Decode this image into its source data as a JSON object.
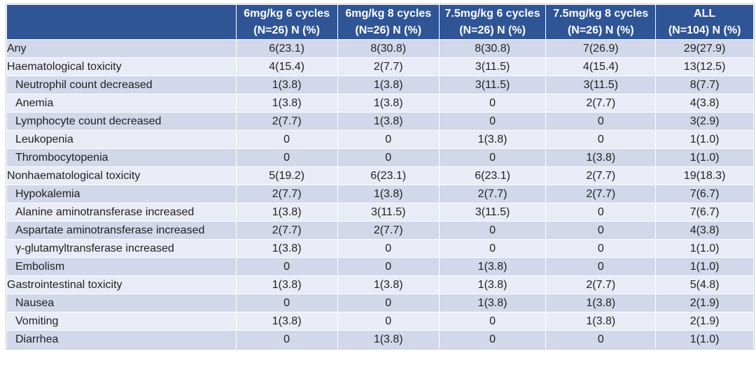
{
  "colors": {
    "header_bg": "#2F5597",
    "header_text": "#FFFFFF",
    "band_dark": "#D2D8EA",
    "band_light": "#E9ECF6",
    "body_text": "#1F1F1F",
    "grid_line": "#FFFFFF",
    "outer_border": "#C4CCDF"
  },
  "table": {
    "corner_label": "",
    "columns": [
      {
        "line1": "6mg/kg 6 cycles",
        "line2": "(N=26) N (%)"
      },
      {
        "line1": "6mg/kg 8 cycles",
        "line2": "(N=26) N (%)"
      },
      {
        "line1": "7.5mg/kg 6 cycles",
        "line2": "(N=26) N (%)"
      },
      {
        "line1": "7.5mg/kg 8 cycles",
        "line2": "(N=26) N (%)"
      },
      {
        "line1": "ALL",
        "line2": "(N=104) N (%)"
      }
    ],
    "rows": [
      {
        "label": "Any",
        "indent": false,
        "values": [
          "6(23.1)",
          "8(30.8)",
          "8(30.8)",
          "7(26.9)",
          "29(27.9)"
        ]
      },
      {
        "label": "Haematological toxicity",
        "indent": false,
        "values": [
          "4(15.4)",
          "2(7.7)",
          "3(11.5)",
          "4(15.4)",
          "13(12.5)"
        ]
      },
      {
        "label": "Neutrophil count decreased",
        "indent": true,
        "values": [
          "1(3.8)",
          "1(3.8)",
          "3(11.5)",
          "3(11.5)",
          "8(7.7)"
        ]
      },
      {
        "label": "Anemia",
        "indent": true,
        "values": [
          "1(3.8)",
          "1(3.8)",
          "0",
          "2(7.7)",
          "4(3.8)"
        ]
      },
      {
        "label": "Lymphocyte count decreased",
        "indent": true,
        "values": [
          "2(7.7)",
          "1(3.8)",
          "0",
          "0",
          "3(2.9)"
        ]
      },
      {
        "label": "Leukopenia",
        "indent": true,
        "values": [
          "0",
          "0",
          "1(3.8)",
          "0",
          "1(1.0)"
        ]
      },
      {
        "label": "Thrombocytopenia",
        "indent": true,
        "values": [
          "0",
          "0",
          "0",
          "1(3.8)",
          "1(1.0)"
        ]
      },
      {
        "label": "Nonhaematological toxicity",
        "indent": false,
        "values": [
          "5(19.2)",
          "6(23.1)",
          "6(23.1)",
          "2(7.7)",
          "19(18.3)"
        ]
      },
      {
        "label": "Hypokalemia",
        "indent": true,
        "values": [
          "2(7.7)",
          "1(3.8)",
          "2(7.7)",
          "2(7.7)",
          "7(6.7)"
        ]
      },
      {
        "label": "Alanine aminotransferase increased",
        "indent": true,
        "values": [
          "1(3.8)",
          "3(11.5)",
          "3(11.5)",
          "0",
          "7(6.7)"
        ]
      },
      {
        "label": "Aspartate aminotransferase increased",
        "indent": true,
        "values": [
          "2(7.7)",
          "2(7.7)",
          "0",
          "0",
          "4(3.8)"
        ]
      },
      {
        "label": "γ-glutamyltransferase increased",
        "indent": true,
        "values": [
          "1(3.8)",
          "0",
          "0",
          "0",
          "1(1.0)"
        ]
      },
      {
        "label": "Embolism",
        "indent": true,
        "values": [
          "0",
          "0",
          "1(3.8)",
          "0",
          "1(1.0)"
        ]
      },
      {
        "label": "Gastrointestinal toxicity",
        "indent": false,
        "values": [
          "1(3.8)",
          "1(3.8)",
          "1(3.8)",
          "2(7.7)",
          "5(4.8)"
        ]
      },
      {
        "label": "Nausea",
        "indent": true,
        "values": [
          "0",
          "0",
          "1(3.8)",
          "1(3.8)",
          "2(1.9)"
        ]
      },
      {
        "label": "Vomiting",
        "indent": true,
        "values": [
          "1(3.8)",
          "0",
          "0",
          "1(3.8)",
          "2(1.9)"
        ]
      },
      {
        "label": "Diarrhea",
        "indent": true,
        "values": [
          "0",
          "1(3.8)",
          "0",
          "0",
          "1(1.0)"
        ]
      }
    ]
  }
}
